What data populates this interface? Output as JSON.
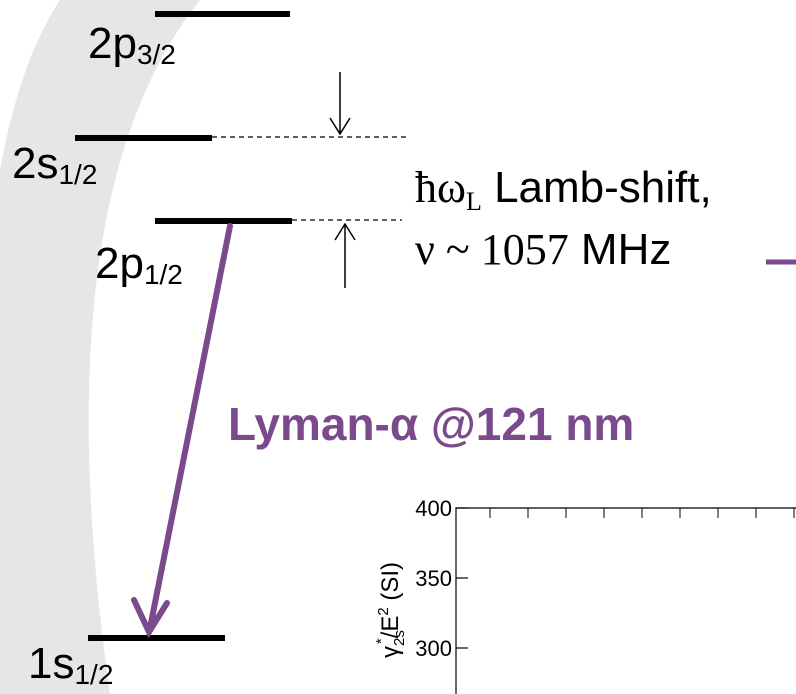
{
  "levels": [
    {
      "label": "2p",
      "sub": "3/2"
    },
    {
      "label": "2s",
      "sub": "1/2"
    },
    {
      "label": "2p",
      "sub": "1/2"
    },
    {
      "label": "1s",
      "sub": "1/2"
    }
  ],
  "lamb_shift": {
    "symbol": "ħω",
    "symbol_sub": "L",
    "text": " Lamb-shift,",
    "frequency": "ν ~ 1057",
    "unit": " MHz"
  },
  "transition": {
    "label": "Lyman-α @121 nm"
  },
  "inset_chart": {
    "y_label": {
      "main": "γ",
      "sub": "2s",
      "sup": "*",
      "mid": "/E",
      "sup2": "2",
      "tail": " (SI)"
    },
    "ylim": [
      267,
      400
    ],
    "yticks": [
      400,
      350,
      300
    ]
  }
}
